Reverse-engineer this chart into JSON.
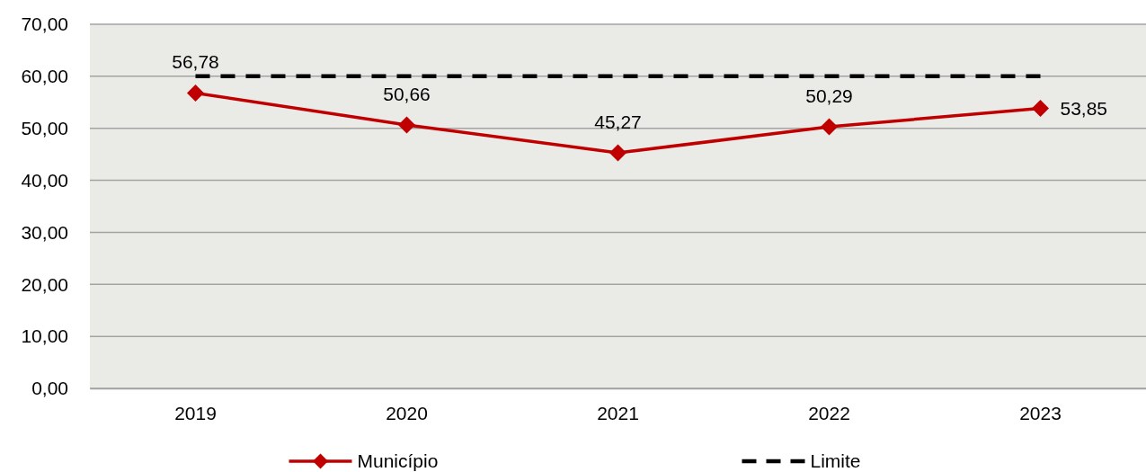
{
  "chart_data": {
    "type": "line",
    "categories": [
      "2019",
      "2020",
      "2021",
      "2022",
      "2023"
    ],
    "series": [
      {
        "name": "Município",
        "color": "#c00000",
        "values": [
          56.78,
          50.66,
          45.27,
          50.29,
          53.85
        ],
        "value_labels": [
          "56,78",
          "50,66",
          "45,27",
          "50,29",
          "53,85"
        ]
      },
      {
        "name": "Limite",
        "color": "#000000",
        "values": [
          60,
          60,
          60,
          60,
          60
        ],
        "line_style": "dashed",
        "marker": "none"
      }
    ],
    "marker": "diamond",
    "line_style": "solid",
    "ylim": [
      0,
      70
    ],
    "yticks": [
      {
        "value": 0,
        "label": "0,00"
      },
      {
        "value": 10,
        "label": "10,00"
      },
      {
        "value": 20,
        "label": "20,00"
      },
      {
        "value": 30,
        "label": "30,00"
      },
      {
        "value": 40,
        "label": "40,00"
      },
      {
        "value": 50,
        "label": "50,00"
      },
      {
        "value": 60,
        "label": "60,00"
      },
      {
        "value": 70,
        "label": "70,00"
      }
    ],
    "grid": "y",
    "legend": "bottom"
  }
}
